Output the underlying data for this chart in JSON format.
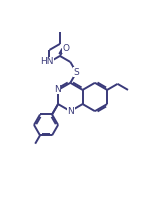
{
  "bg_color": "#ffffff",
  "line_color": "#3a3a7a",
  "line_width": 1.4,
  "figsize": [
    1.56,
    1.98
  ],
  "dpi": 100,
  "xlim": [
    0,
    10
  ],
  "ylim": [
    0,
    12.7
  ],
  "font_size": 6.5,
  "labels": {
    "N1": "N",
    "N3": "N",
    "S": "S",
    "O": "O",
    "NH": "HN"
  }
}
